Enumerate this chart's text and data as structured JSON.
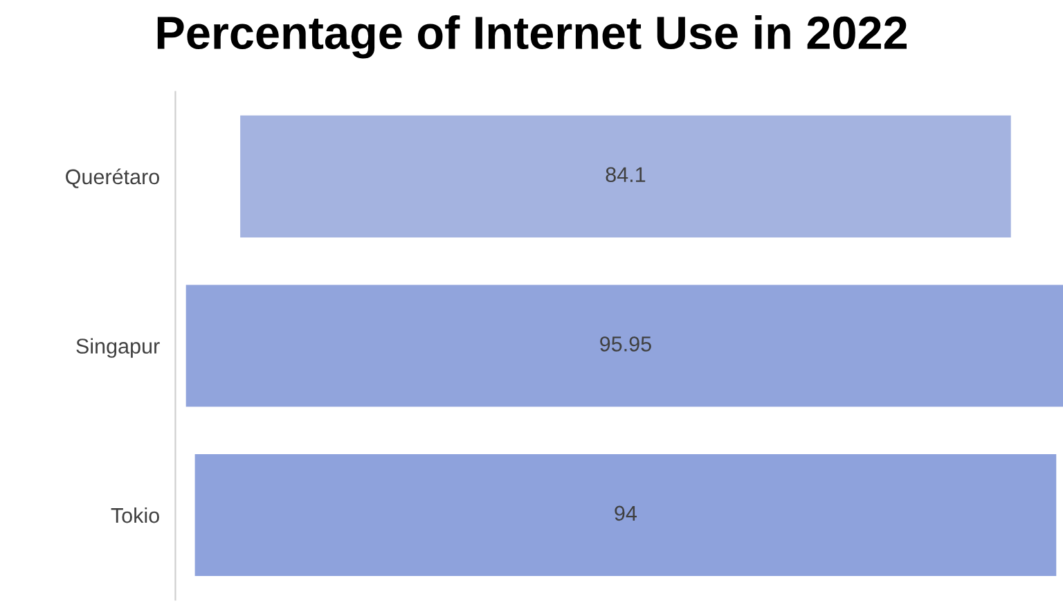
{
  "chart_data": {
    "type": "other",
    "title": "Percentage of Internet Use in 2022",
    "categories": [
      "Querétaro",
      "Singapur",
      "Tokio"
    ],
    "values": [
      84.1,
      95.95,
      94
    ],
    "colors": [
      "#a4b3e0",
      "#91a4dc",
      "#8ea2dc"
    ],
    "data_labels": true
  }
}
